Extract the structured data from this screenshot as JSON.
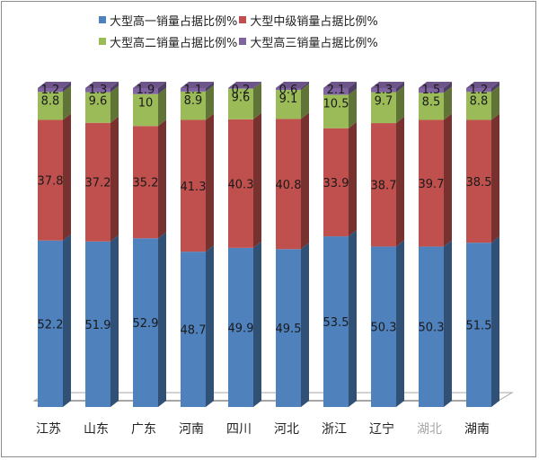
{
  "chart_data": {
    "type": "bar",
    "stacked": true,
    "three_d": true,
    "title": "",
    "xlabel": "",
    "ylabel": "",
    "ylim": [
      0,
      100
    ],
    "grid": false,
    "legend_position": "top",
    "categories": [
      "江苏",
      "山东",
      "广东",
      "河南",
      "四川",
      "河北",
      "浙江",
      "辽宁",
      "湖北",
      "湖南"
    ],
    "series": [
      {
        "name": "大型高一销量占据比例%",
        "color": "#4f81bd",
        "values": [
          52.2,
          51.9,
          52.9,
          48.7,
          49.9,
          49.5,
          53.5,
          50.3,
          50.3,
          51.5
        ]
      },
      {
        "name": "大型中级销量占据比例%",
        "color": "#c0504d",
        "values": [
          37.8,
          37.2,
          35.2,
          41.3,
          40.3,
          40.8,
          33.9,
          38.7,
          39.7,
          38.5
        ]
      },
      {
        "name": "大型高二销量占据比例%",
        "color": "#9bbb59",
        "values": [
          8.8,
          9.6,
          10,
          8.9,
          9.6,
          9.1,
          10.5,
          9.7,
          8.5,
          8.8
        ]
      },
      {
        "name": "大型高三销量占据比例%",
        "color": "#8064a2",
        "values": [
          1.2,
          1.3,
          1.9,
          1.1,
          0.2,
          0.6,
          2.1,
          1.3,
          1.5,
          1.2
        ]
      }
    ]
  },
  "legend": {
    "rows": [
      [
        {
          "label": "大型高一销量占据比例%",
          "color": "#4f81bd"
        },
        {
          "label": "大型中级销量占据比例%",
          "color": "#c0504d"
        }
      ],
      [
        {
          "label": "大型高二销量占据比例%",
          "color": "#9bbb59"
        },
        {
          "label": "大型高三销量占据比例%",
          "color": "#8064a2"
        }
      ]
    ]
  },
  "colors": {
    "axis_line": "#a6a6a6",
    "label_text": "#222222",
    "muted_label": "#a6a6a6"
  }
}
